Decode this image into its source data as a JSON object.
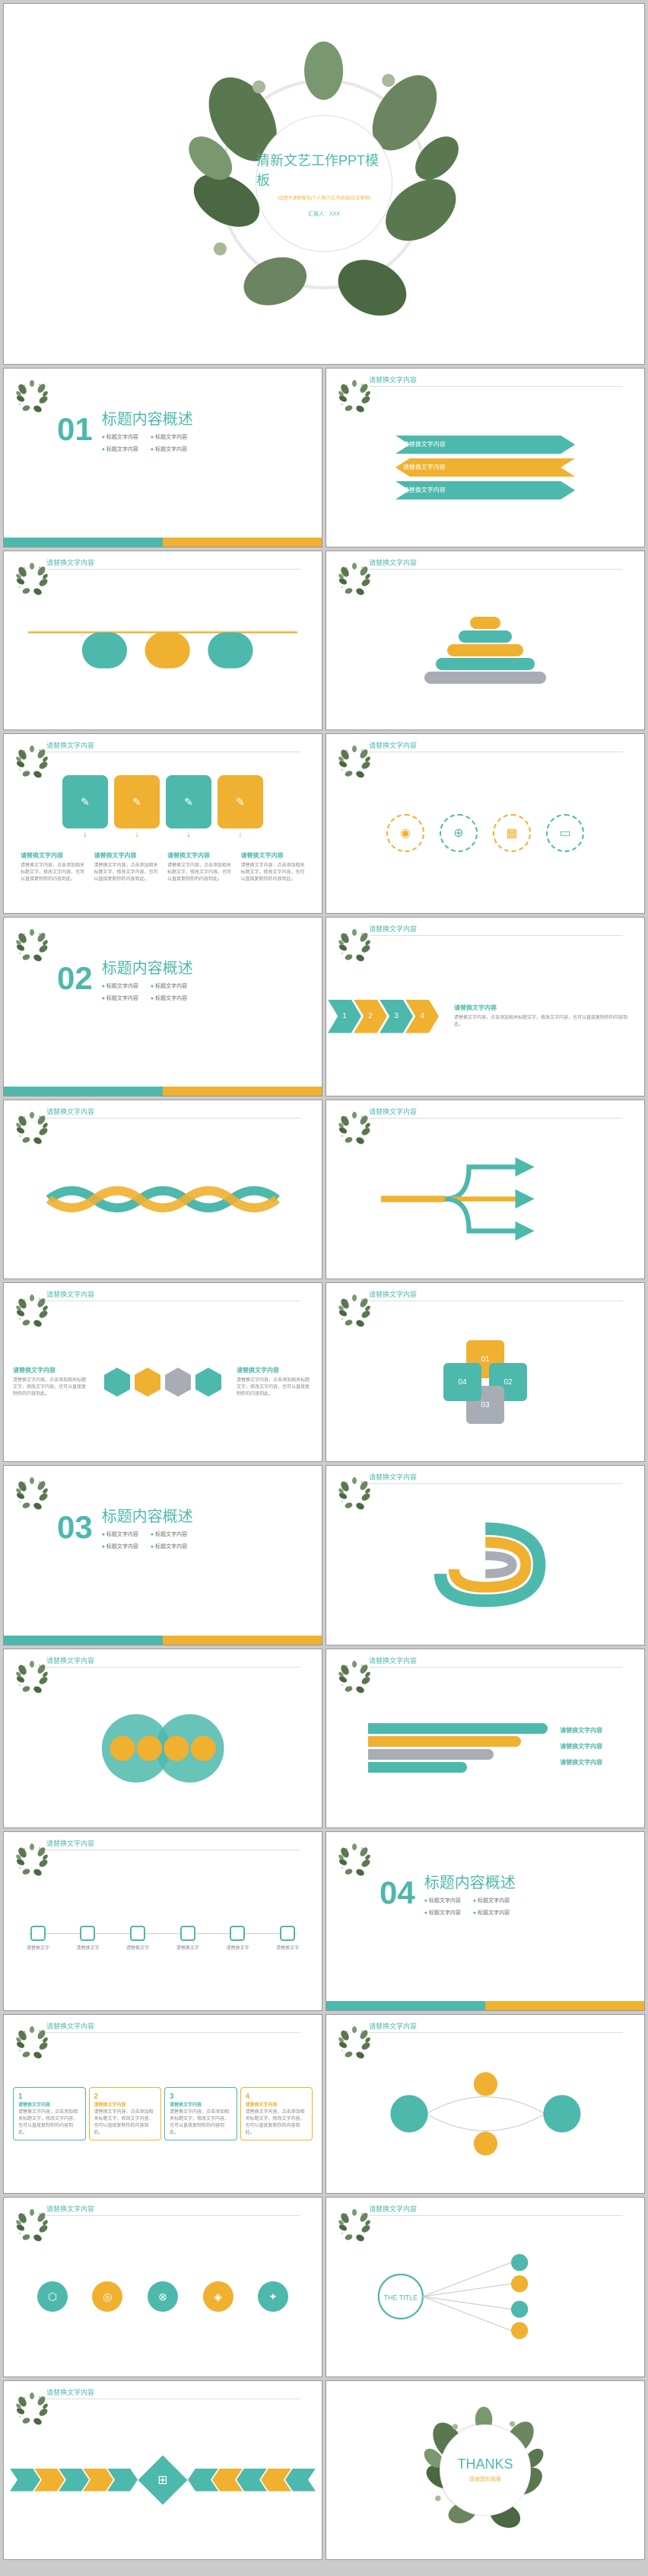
{
  "colors": {
    "teal": "#4db8ac",
    "yellow": "#f0b030",
    "grey": "#a8adb5",
    "bg": "#ffffff",
    "text": "#888888",
    "border": "#cccccc"
  },
  "hero": {
    "title": "清新文艺工作PPT模板",
    "subtitle": "(适用于述职报告|个人简介|工作总结|论文答辩)",
    "author": "汇报人：XXX"
  },
  "sections": [
    {
      "num": "01",
      "title": "标题内容概述",
      "bullets": [
        "标题文字内容",
        "标题文字内容",
        "标题文字内容",
        "标题文字内容"
      ]
    },
    {
      "num": "02",
      "title": "标题内容概述",
      "bullets": [
        "标题文字内容",
        "标题文字内容",
        "标题文字内容",
        "标题文字内容"
      ]
    },
    {
      "num": "03",
      "title": "标题内容概述",
      "bullets": [
        "标题文字内容",
        "标题文字内容",
        "标题文字内容",
        "标题文字内容"
      ]
    },
    {
      "num": "04",
      "title": "标题内容概述",
      "bullets": [
        "标题文字内容",
        "标题文字内容",
        "标题文字内容",
        "标题文字内容"
      ]
    }
  ],
  "slide_header": "请替换文字内容",
  "block": {
    "title": "请替换文字内容",
    "body": "请替换文字内容，点击添加相关标题文字，修改文字内容，也可以直接复制你的内容到此。"
  },
  "arrows": [
    {
      "color": "#4db8ac"
    },
    {
      "color": "#f0b030"
    },
    {
      "color": "#4db8ac"
    }
  ],
  "pyramid": [
    {
      "w": 40,
      "c": "#f0b030"
    },
    {
      "w": 70,
      "c": "#4db8ac"
    },
    {
      "w": 100,
      "c": "#f0b030"
    },
    {
      "w": 130,
      "c": "#4db8ac"
    },
    {
      "w": 160,
      "c": "#a8adb5"
    }
  ],
  "icons4": [
    {
      "c": "#f0b030",
      "g": "◉"
    },
    {
      "c": "#4db8ac",
      "g": "⊕"
    },
    {
      "c": "#f0b030",
      "g": "▦"
    },
    {
      "c": "#4db8ac",
      "g": "▭"
    }
  ],
  "brackets": [
    {
      "c": "#4db8ac"
    },
    {
      "c": "#f0b030"
    },
    {
      "c": "#4db8ac"
    },
    {
      "c": "#f0b030"
    }
  ],
  "chevrons": [
    {
      "c": "#4db8ac",
      "t": "1"
    },
    {
      "c": "#f0b030",
      "t": "2"
    },
    {
      "c": "#4db8ac",
      "t": "3"
    },
    {
      "c": "#f0b030",
      "t": "4"
    }
  ],
  "hex": [
    {
      "c": "#4db8ac"
    },
    {
      "c": "#f0b030"
    },
    {
      "c": "#a8adb5"
    },
    {
      "c": "#4db8ac"
    }
  ],
  "cycle": [
    {
      "c": "#f0b030",
      "t": "01"
    },
    {
      "c": "#4db8ac",
      "t": "02"
    },
    {
      "c": "#a8adb5",
      "t": "03"
    },
    {
      "c": "#4db8ac",
      "t": "04"
    }
  ],
  "ribbons": [
    {
      "c": "#4db8ac"
    },
    {
      "c": "#f0b030"
    },
    {
      "c": "#a8adb5"
    },
    {
      "c": "#4db8ac"
    }
  ],
  "flow4": [
    {
      "c": "#4db8ac",
      "n": "1"
    },
    {
      "c": "#f0b030",
      "n": "2"
    },
    {
      "c": "#4db8ac",
      "n": "3"
    },
    {
      "c": "#f0b030",
      "n": "4"
    }
  ],
  "timeline": [
    "请替换文字",
    "请替换文字",
    "请替换文字",
    "请替换文字",
    "请替换文字",
    "请替换文字"
  ],
  "sticons": [
    {
      "c": "#4db8ac",
      "g": "⬡"
    },
    {
      "c": "#f0b030",
      "g": "◎"
    },
    {
      "c": "#4db8ac",
      "g": "⊗"
    },
    {
      "c": "#f0b030",
      "g": "◈"
    },
    {
      "c": "#4db8ac",
      "g": "✦"
    }
  ],
  "chev2": [
    {
      "c": "#4db8ac"
    },
    {
      "c": "#f0b030"
    },
    {
      "c": "#4db8ac"
    },
    {
      "c": "#f0b030"
    },
    {
      "c": "#4db8ac"
    }
  ],
  "thetitle": "THE TITLE",
  "thanks": {
    "title": "THANKS",
    "sub": "感谢您的观看"
  }
}
